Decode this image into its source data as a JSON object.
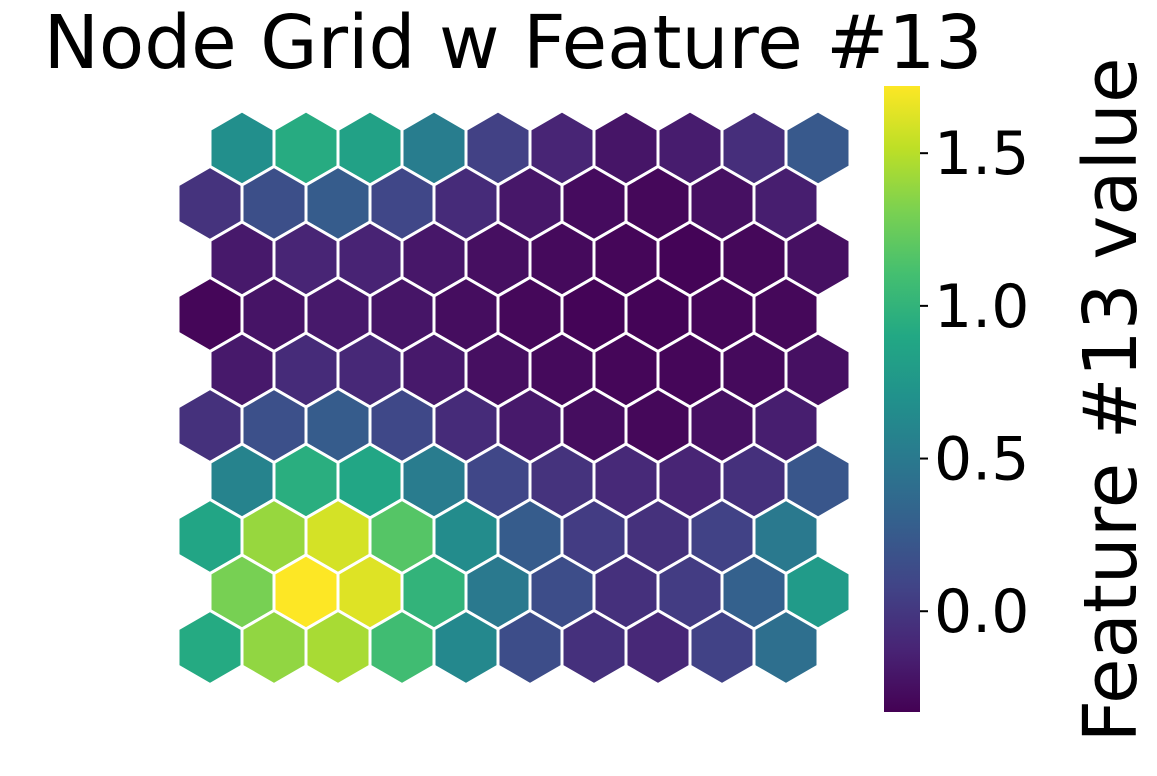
{
  "chart_data": {
    "type": "heatmap",
    "title": "Node Grid w Feature #13",
    "colorbar": {
      "label": "Feature #13 value",
      "range": [
        -0.33,
        1.72
      ],
      "ticks": [
        0.0,
        0.5,
        1.0,
        1.5
      ],
      "tick_labels": [
        "0.0",
        "0.5",
        "1.0",
        "1.5"
      ],
      "colormap": "viridis"
    },
    "grid": {
      "rows": 10,
      "cols": 10,
      "layout": "hexagonal"
    },
    "values": [
      [
        0.68,
        0.93,
        0.84,
        0.53,
        0.06,
        -0.12,
        -0.21,
        -0.17,
        -0.06,
        0.24
      ],
      [
        -0.03,
        0.16,
        0.26,
        0.1,
        -0.08,
        -0.2,
        -0.27,
        -0.29,
        -0.24,
        -0.16
      ],
      [
        -0.19,
        -0.12,
        -0.13,
        -0.2,
        -0.25,
        -0.28,
        -0.3,
        -0.31,
        -0.29,
        -0.24
      ],
      [
        -0.3,
        -0.22,
        -0.19,
        -0.21,
        -0.26,
        -0.29,
        -0.31,
        -0.31,
        -0.3,
        -0.29
      ],
      [
        -0.19,
        -0.08,
        -0.1,
        -0.19,
        -0.25,
        -0.28,
        -0.3,
        -0.3,
        -0.28,
        -0.24
      ],
      [
        -0.04,
        0.17,
        0.26,
        0.11,
        -0.08,
        -0.19,
        -0.26,
        -0.29,
        -0.24,
        -0.16
      ],
      [
        0.58,
        0.95,
        0.88,
        0.52,
        0.1,
        -0.03,
        -0.09,
        -0.12,
        -0.05,
        0.22
      ],
      [
        0.87,
        1.4,
        1.59,
        1.17,
        0.65,
        0.26,
        0.03,
        -0.04,
        0.07,
        0.5
      ],
      [
        1.3,
        1.72,
        1.62,
        1.0,
        0.5,
        0.15,
        -0.05,
        0.03,
        0.3,
        0.78
      ],
      [
        0.92,
        1.38,
        1.45,
        1.08,
        0.62,
        0.15,
        -0.05,
        -0.1,
        0.07,
        0.42
      ]
    ]
  }
}
